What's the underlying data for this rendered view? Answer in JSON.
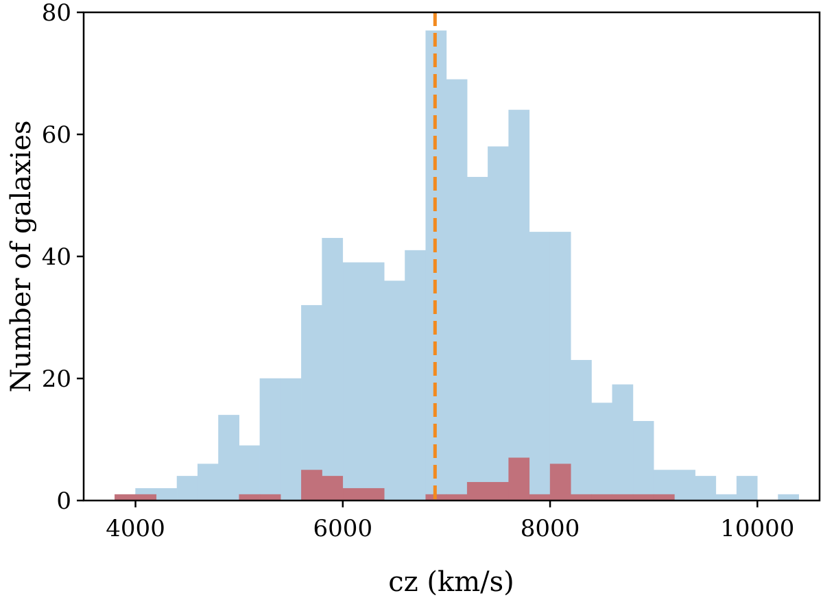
{
  "chart_data": {
    "type": "bar",
    "xlabel": "cz (km/s)",
    "ylabel": "Number of galaxies",
    "xlim": [
      3500,
      10600
    ],
    "ylim": [
      0,
      80
    ],
    "xticks": [
      4000,
      6000,
      8000,
      10000
    ],
    "yticks": [
      0,
      20,
      40,
      60,
      80
    ],
    "bin_width": 200,
    "grid": false,
    "series": [
      {
        "color": "#b4d3e7",
        "bins": [
          {
            "x": 4000,
            "count": 2
          },
          {
            "x": 4200,
            "count": 2
          },
          {
            "x": 4400,
            "count": 4
          },
          {
            "x": 4600,
            "count": 6
          },
          {
            "x": 4800,
            "count": 14
          },
          {
            "x": 5000,
            "count": 9
          },
          {
            "x": 5200,
            "count": 20
          },
          {
            "x": 5400,
            "count": 20
          },
          {
            "x": 5600,
            "count": 32
          },
          {
            "x": 5800,
            "count": 43
          },
          {
            "x": 6000,
            "count": 39
          },
          {
            "x": 6200,
            "count": 39
          },
          {
            "x": 6400,
            "count": 36
          },
          {
            "x": 6600,
            "count": 41
          },
          {
            "x": 6800,
            "count": 77
          },
          {
            "x": 7000,
            "count": 69
          },
          {
            "x": 7200,
            "count": 53
          },
          {
            "x": 7400,
            "count": 58
          },
          {
            "x": 7600,
            "count": 64
          },
          {
            "x": 7800,
            "count": 44
          },
          {
            "x": 8000,
            "count": 44
          },
          {
            "x": 8200,
            "count": 23
          },
          {
            "x": 8400,
            "count": 16
          },
          {
            "x": 8600,
            "count": 19
          },
          {
            "x": 8800,
            "count": 13
          },
          {
            "x": 9000,
            "count": 5
          },
          {
            "x": 9200,
            "count": 5
          },
          {
            "x": 9400,
            "count": 4
          },
          {
            "x": 9600,
            "count": 1
          },
          {
            "x": 9800,
            "count": 4
          },
          {
            "x": 10200,
            "count": 1
          }
        ]
      },
      {
        "color": "#c1717b",
        "bins": [
          {
            "x": 3800,
            "count": 1
          },
          {
            "x": 4000,
            "count": 1
          },
          {
            "x": 5000,
            "count": 1
          },
          {
            "x": 5200,
            "count": 1
          },
          {
            "x": 5600,
            "count": 5
          },
          {
            "x": 5800,
            "count": 4
          },
          {
            "x": 6000,
            "count": 2
          },
          {
            "x": 6200,
            "count": 2
          },
          {
            "x": 6800,
            "count": 1
          },
          {
            "x": 7000,
            "count": 1
          },
          {
            "x": 7200,
            "count": 3
          },
          {
            "x": 7400,
            "count": 3
          },
          {
            "x": 7600,
            "count": 7
          },
          {
            "x": 7800,
            "count": 1
          },
          {
            "x": 8000,
            "count": 6
          },
          {
            "x": 8200,
            "count": 1
          },
          {
            "x": 8400,
            "count": 1
          },
          {
            "x": 8600,
            "count": 1
          },
          {
            "x": 8800,
            "count": 1
          },
          {
            "x": 9000,
            "count": 1
          }
        ]
      }
    ],
    "reference_line": {
      "x": 6890,
      "color": "#f28a1f",
      "style": "dashed"
    }
  }
}
